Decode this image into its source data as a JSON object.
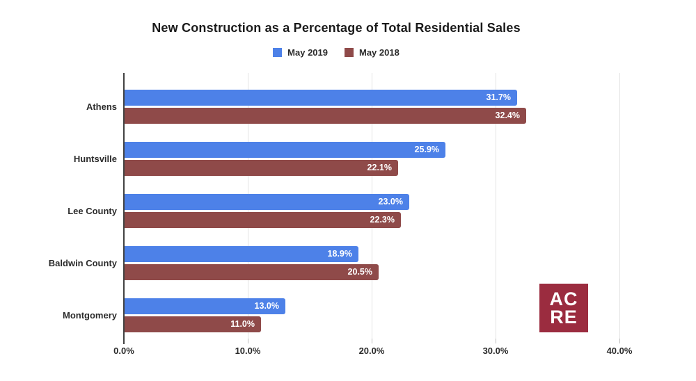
{
  "chart_data": {
    "type": "bar",
    "orientation": "horizontal",
    "title": "New Construction as a Percentage of Total Residential Sales",
    "categories": [
      "Athens",
      "Huntsville",
      "Lee County",
      "Baldwin County",
      "Montgomery"
    ],
    "series": [
      {
        "name": "May 2019",
        "color": "#4d81e8",
        "values": [
          31.7,
          25.9,
          23.0,
          18.9,
          13.0
        ],
        "value_labels": [
          "31.7%",
          "25.9%",
          "23.0%",
          "18.9%",
          "13.0%"
        ]
      },
      {
        "name": "May 2018",
        "color": "#8f4a49",
        "values": [
          32.4,
          22.1,
          22.3,
          20.5,
          11.0
        ],
        "value_labels": [
          "32.4%",
          "22.1%",
          "22.3%",
          "20.5%",
          "11.0%"
        ]
      }
    ],
    "x_axis": {
      "min": 0,
      "max": 40,
      "ticks": [
        0,
        10,
        20,
        30,
        40
      ],
      "tick_labels": [
        "0.0%",
        "10.0%",
        "20.0%",
        "30.0%",
        "40.0%"
      ]
    },
    "legend_position": "top",
    "grid": true,
    "value_labels_inside": true
  },
  "logo": {
    "line1": "AC",
    "line2": "RE",
    "background": "#9b2c3f",
    "text_color": "#ffffff"
  },
  "style_colors": {
    "grid": "#e3e3e3",
    "axis": "#424242",
    "value_label": "#ffffff",
    "text": "#2b2b2b"
  }
}
